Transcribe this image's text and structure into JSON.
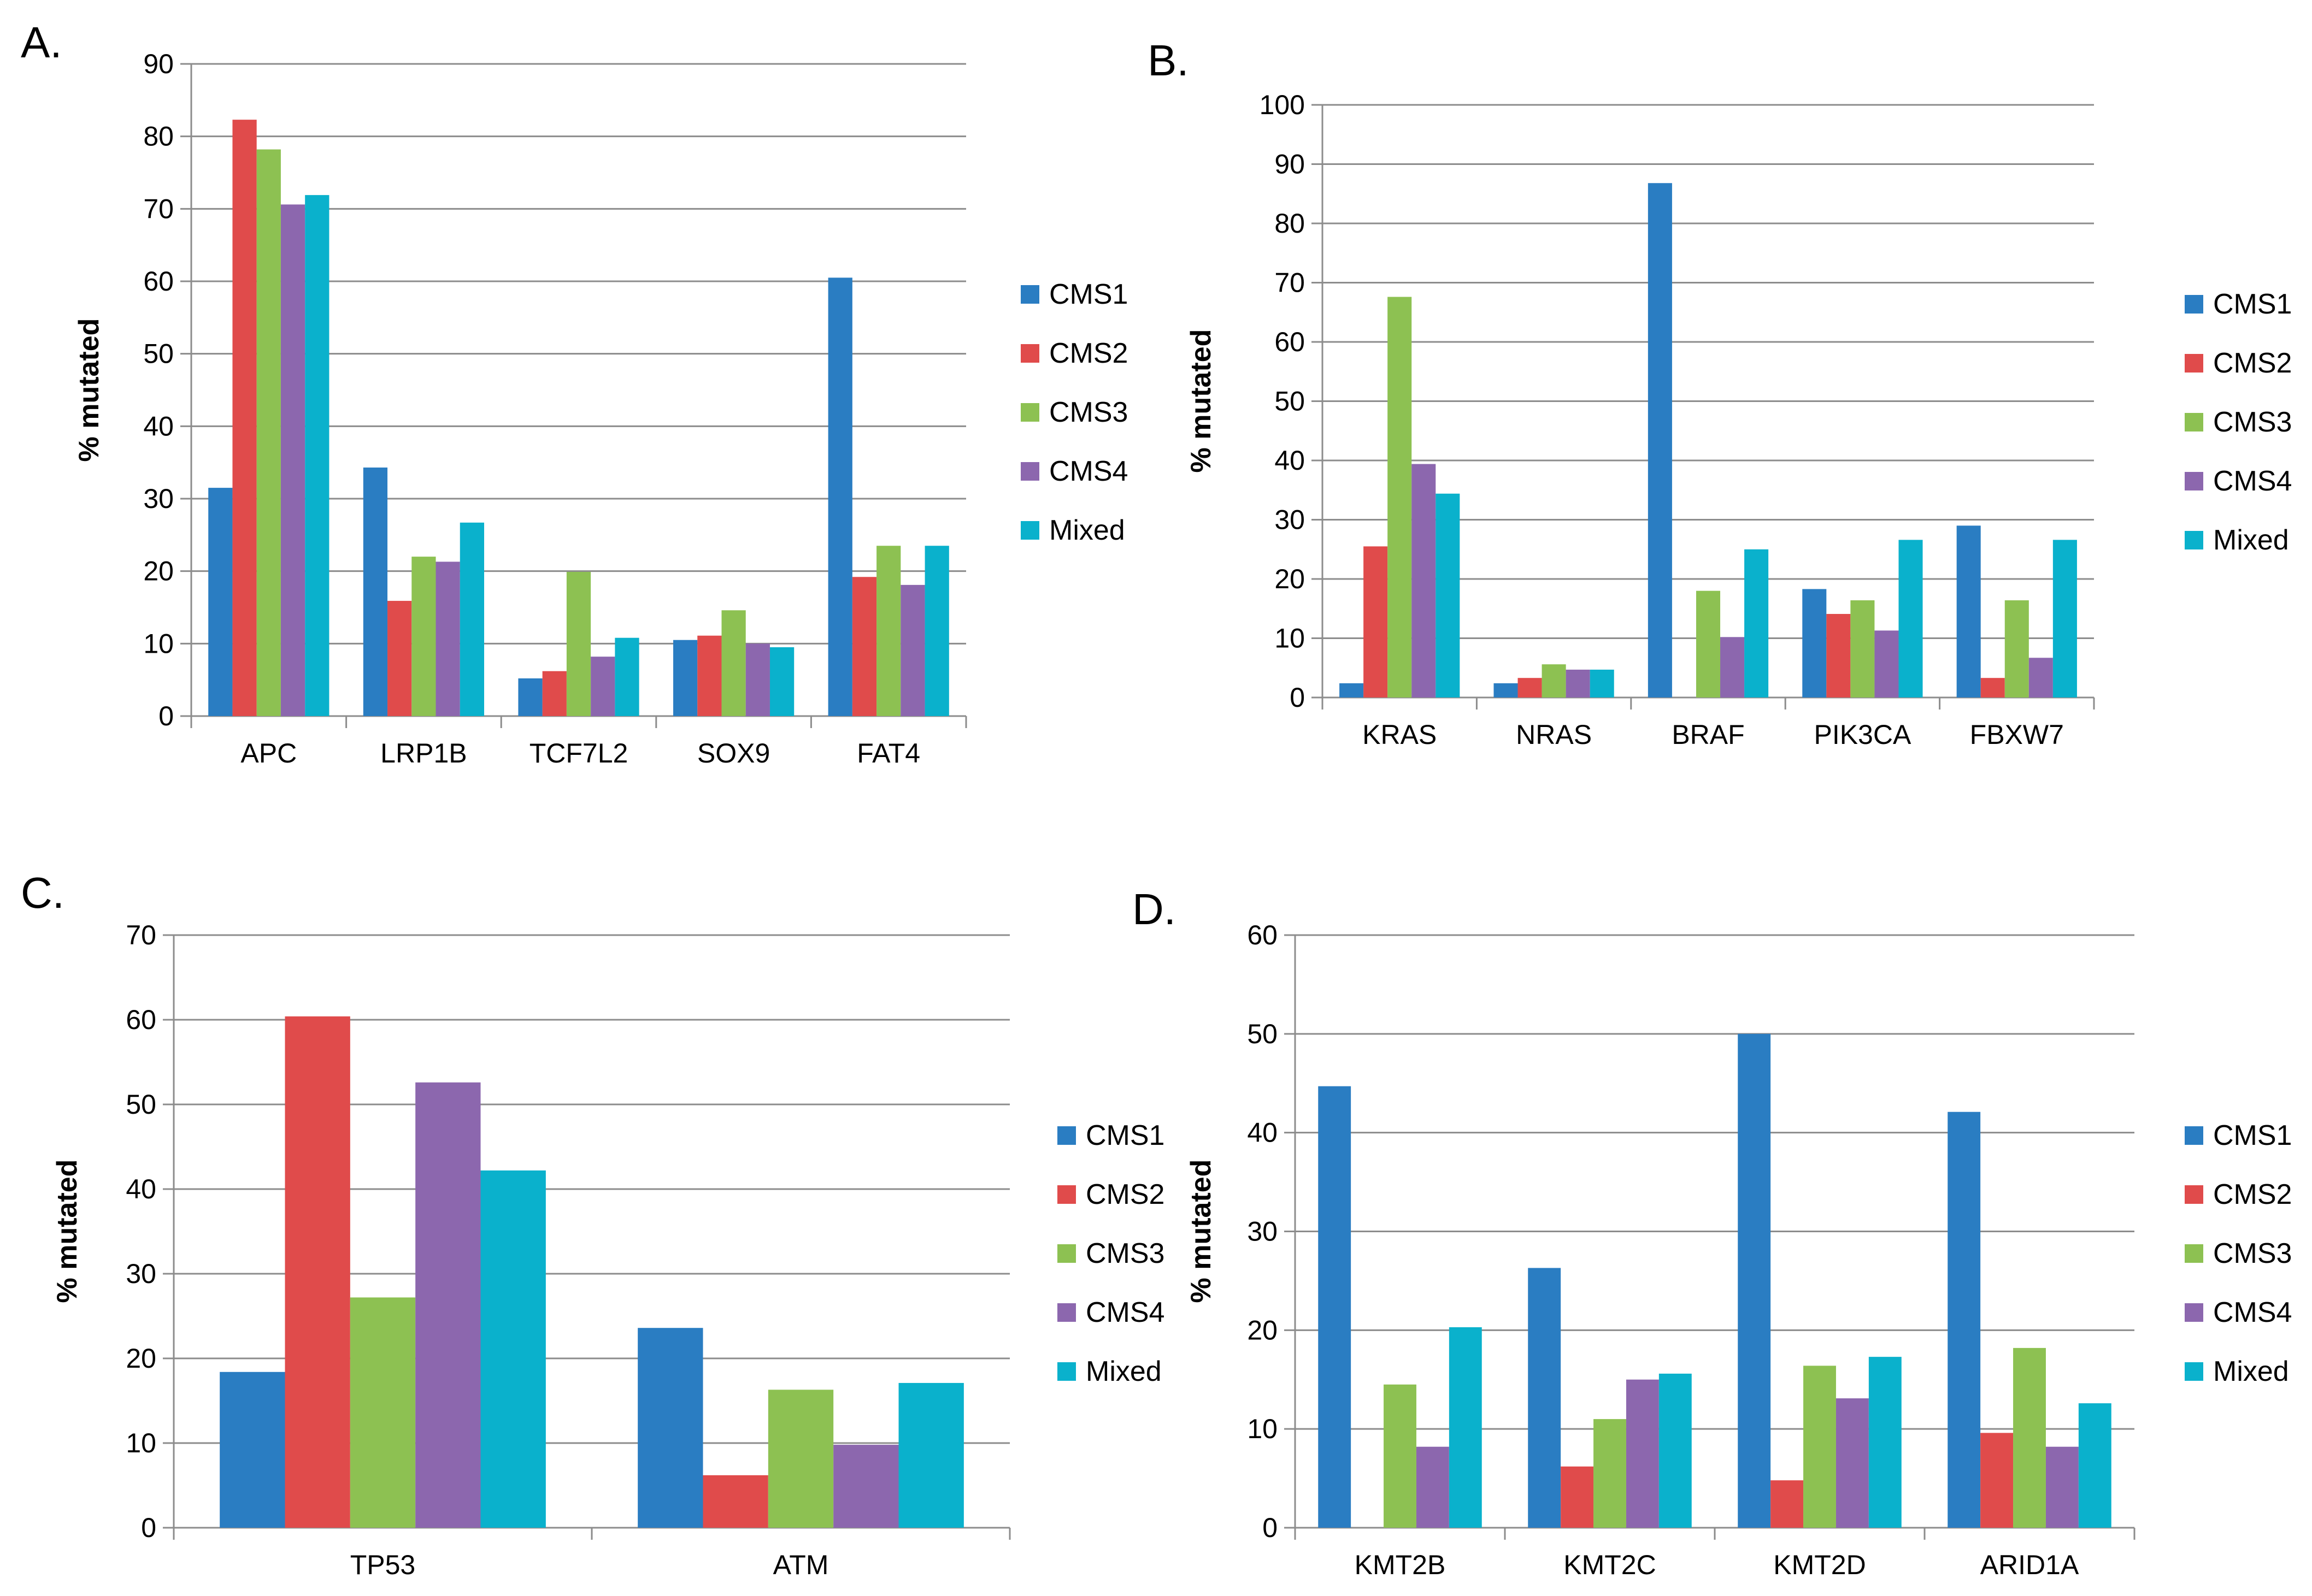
{
  "series_colors": {
    "CMS1": "#2A7DC2",
    "CMS2": "#E04B4B",
    "CMS3": "#8DC152",
    "CMS4": "#8C67AE",
    "Mixed": "#0AB1CC"
  },
  "chart_data": [
    {
      "panel": "A.",
      "type": "bar",
      "ylabel": "% mutated",
      "ylim": [
        0,
        90
      ],
      "yticks": [
        "0",
        "10",
        "20",
        "30",
        "40",
        "50",
        "60",
        "70",
        "80",
        "90"
      ],
      "categories": [
        "APC",
        "LRP1B",
        "TCF7L2",
        "SOX9",
        "FAT4"
      ],
      "legend_position": "right",
      "series": [
        {
          "name": "CMS1",
          "values": [
            31.5,
            34.3,
            5.2,
            10.5,
            60.5
          ]
        },
        {
          "name": "CMS2",
          "values": [
            82.3,
            15.9,
            6.2,
            11.1,
            19.2
          ]
        },
        {
          "name": "CMS3",
          "values": [
            78.2,
            22.0,
            19.9,
            14.6,
            23.5
          ]
        },
        {
          "name": "CMS4",
          "values": [
            70.6,
            21.3,
            8.2,
            10.0,
            18.1
          ]
        },
        {
          "name": "Mixed",
          "values": [
            71.9,
            26.7,
            10.8,
            9.5,
            23.5
          ]
        }
      ]
    },
    {
      "panel": "B.",
      "type": "bar",
      "ylabel": "% mutated",
      "ylim": [
        0,
        100
      ],
      "yticks": [
        "0",
        "10",
        "20",
        "30",
        "40",
        "50",
        "60",
        "70",
        "80",
        "90",
        "100"
      ],
      "categories": [
        "KRAS",
        "NRAS",
        "BRAF",
        "PIK3CA",
        "FBXW7"
      ],
      "legend_position": "right",
      "series": [
        {
          "name": "CMS1",
          "values": [
            2.4,
            2.4,
            86.8,
            18.3,
            29.0
          ]
        },
        {
          "name": "CMS2",
          "values": [
            25.5,
            3.3,
            0,
            14.1,
            3.3
          ]
        },
        {
          "name": "CMS3",
          "values": [
            67.6,
            5.6,
            18.0,
            16.4,
            16.4
          ]
        },
        {
          "name": "CMS4",
          "values": [
            39.4,
            4.7,
            10.2,
            11.3,
            6.7
          ]
        },
        {
          "name": "Mixed",
          "values": [
            34.4,
            4.7,
            25.0,
            26.6,
            26.6
          ]
        }
      ]
    },
    {
      "panel": "C.",
      "type": "bar",
      "ylabel": "% mutated",
      "ylim": [
        0,
        70
      ],
      "yticks": [
        "0",
        "10",
        "20",
        "30",
        "40",
        "50",
        "60",
        "70"
      ],
      "categories": [
        "TP53",
        "ATM"
      ],
      "legend_position": "right",
      "series": [
        {
          "name": "CMS1",
          "values": [
            18.4,
            23.6
          ]
        },
        {
          "name": "CMS2",
          "values": [
            60.4,
            6.2
          ]
        },
        {
          "name": "CMS3",
          "values": [
            27.2,
            16.3
          ]
        },
        {
          "name": "CMS4",
          "values": [
            52.6,
            9.8
          ]
        },
        {
          "name": "Mixed",
          "values": [
            42.2,
            17.1
          ]
        }
      ]
    },
    {
      "panel": "D.",
      "type": "bar",
      "ylabel": "% mutated",
      "ylim": [
        0,
        60
      ],
      "yticks": [
        "0",
        "10",
        "20",
        "30",
        "40",
        "50",
        "60"
      ],
      "categories": [
        "KMT2B",
        "KMT2C",
        "KMT2D",
        "ARID1A"
      ],
      "legend_position": "right",
      "series": [
        {
          "name": "CMS1",
          "values": [
            44.7,
            26.3,
            50.0,
            42.1
          ]
        },
        {
          "name": "CMS2",
          "values": [
            0,
            6.2,
            4.8,
            9.6
          ]
        },
        {
          "name": "CMS3",
          "values": [
            14.5,
            11.0,
            16.4,
            18.2
          ]
        },
        {
          "name": "CMS4",
          "values": [
            8.2,
            15.0,
            13.1,
            8.2
          ]
        },
        {
          "name": "Mixed",
          "values": [
            20.3,
            15.6,
            17.3,
            12.6
          ]
        }
      ]
    }
  ]
}
